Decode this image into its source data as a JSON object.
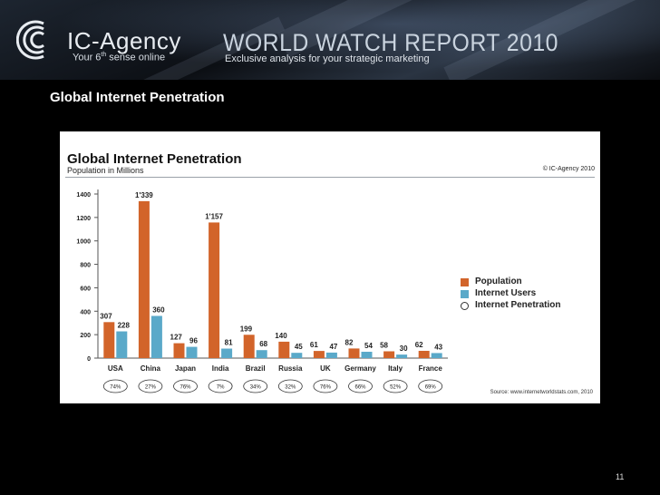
{
  "header": {
    "brand_prefix": "IC-",
    "brand_name": "Agency",
    "tagline": "Your 6",
    "tagline_sup": "th",
    "tagline_rest": " sense online",
    "report_title": "WORLD WATCH REPORT 2010",
    "report_subtitle": "Exclusive analysis for your strategic marketing"
  },
  "page_heading": "Global Internet Penetration",
  "page_number": "11",
  "colors": {
    "population": "#d2642a",
    "internet_users": "#5aa9c9",
    "background": "#000000"
  },
  "chart_data": {
    "type": "bar",
    "title": "Global Internet Penetration",
    "subtitle": "Population in Millions",
    "copyright": "© IC-Agency 2010",
    "source": "Source: www.internetworldstats.com, 2010",
    "categories": [
      "USA",
      "China",
      "Japan",
      "India",
      "Brazil",
      "Russia",
      "UK",
      "Germany",
      "Italy",
      "France"
    ],
    "series": [
      {
        "name": "Population",
        "values": [
          307,
          1339,
          127,
          1157,
          199,
          140,
          61,
          82,
          58,
          62
        ],
        "labels": [
          "307",
          "1'339",
          "127",
          "1'157",
          "199",
          "140",
          "61",
          "82",
          "58",
          "62"
        ]
      },
      {
        "name": "Internet Users",
        "values": [
          228,
          360,
          96,
          81,
          68,
          45,
          47,
          54,
          30,
          43
        ],
        "labels": [
          "228",
          "360",
          "96",
          "81",
          "68",
          "45",
          "47",
          "54",
          "30",
          "43"
        ]
      },
      {
        "name": "Internet Penetration",
        "values": [
          74,
          27,
          76,
          7,
          34,
          32,
          76,
          66,
          52,
          69
        ],
        "labels": [
          "74%",
          "27%",
          "76%",
          "7%",
          "34%",
          "32%",
          "76%",
          "66%",
          "52%",
          "69%"
        ]
      }
    ],
    "yticks": [
      0,
      200,
      400,
      600,
      800,
      1000,
      1200,
      1400
    ],
    "ylim": [
      0,
      1400
    ],
    "grid": false,
    "legend": "right"
  }
}
